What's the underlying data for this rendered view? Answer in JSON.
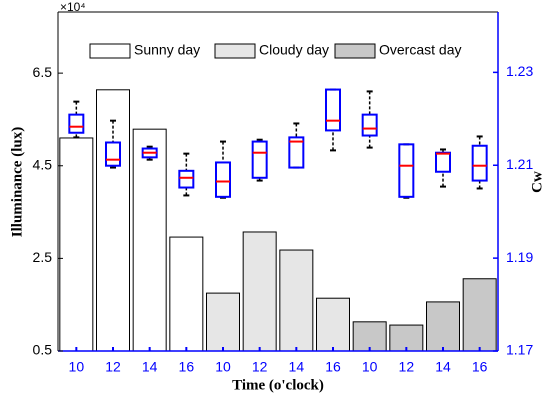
{
  "chart_data": {
    "type": "bar",
    "y_multiplier": "×10⁴",
    "xlabel": "Time (o'clock)",
    "ylabel": "Illuminance (lux)",
    "y2label": "Cw",
    "categories": [
      "10",
      "12",
      "14",
      "16",
      "10",
      "12",
      "14",
      "16",
      "10",
      "12",
      "14",
      "16"
    ],
    "series": [
      {
        "name": "Sunny day",
        "color": "#ffffff",
        "values": [
          5.1,
          6.14,
          5.29,
          2.96,
          null,
          null,
          null,
          null,
          null,
          null,
          null,
          null
        ]
      },
      {
        "name": "Cloudy day",
        "color": "#e6e6e6",
        "values": [
          null,
          null,
          null,
          null,
          1.75,
          3.07,
          2.68,
          1.64,
          null,
          null,
          null,
          null
        ]
      },
      {
        "name": "Overcast day",
        "color": "#c8c8c8",
        "values": [
          null,
          null,
          null,
          null,
          null,
          null,
          null,
          null,
          1.13,
          1.06,
          1.56,
          2.06
        ]
      }
    ],
    "box": {
      "axis": "y2",
      "color": "#0000ff",
      "median_color": "#ff0000",
      "low": [
        1.216,
        1.2095,
        1.2112,
        1.2035,
        1.203,
        1.2067,
        1.2095,
        1.2132,
        1.2138,
        1.203,
        1.2054,
        1.205
      ],
      "q1": [
        1.217,
        1.2099,
        1.2117,
        1.2052,
        1.2032,
        1.2073,
        1.2095,
        1.2175,
        1.2164,
        1.2032,
        1.2086,
        1.2067
      ],
      "median": [
        1.2183,
        1.2112,
        1.2127,
        1.2073,
        1.2065,
        1.2127,
        1.2151,
        1.2196,
        1.2179,
        1.2099,
        1.2125,
        1.2099
      ],
      "q3": [
        1.2209,
        1.2149,
        1.2136,
        1.2088,
        1.2106,
        1.2151,
        1.216,
        1.2263,
        1.2209,
        1.2145,
        1.2127,
        1.2142
      ],
      "high": [
        1.2237,
        1.2196,
        1.214,
        1.2125,
        1.2151,
        1.2155,
        1.219,
        1.2263,
        1.2259,
        1.2145,
        1.2134,
        1.2162
      ]
    },
    "ylim": [
      0.5,
      7.82
    ],
    "yticks": [
      0.5,
      2.5,
      4.5,
      6.5
    ],
    "y2lim": [
      1.17,
      1.243
    ],
    "y2ticks": [
      1.17,
      1.19,
      1.21,
      1.23
    ],
    "legend": "top",
    "y2_color": "#0000ff"
  }
}
